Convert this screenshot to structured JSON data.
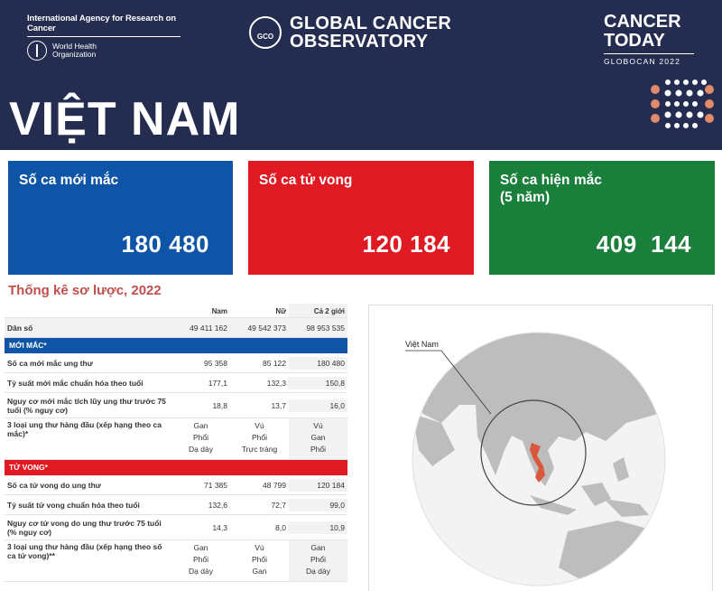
{
  "header": {
    "iarc": "International Agency for Research on Cancer",
    "who_line1": "World Health",
    "who_line2": "Organization",
    "gco_icon": "GCO",
    "gco_line1": "GLOBAL CANCER",
    "gco_line2": "OBSERVATORY",
    "ct_line1": "CANCER",
    "ct_line2": "TODAY",
    "ct_sub": "GLOBOCAN 2022"
  },
  "country": "VIỆT NAM",
  "stats": {
    "new_cases": {
      "label": "Số ca mới mắc",
      "value": "180 480"
    },
    "deaths": {
      "label": "Số ca tử vong",
      "value": "120 184"
    },
    "prevalence": {
      "label_line1": "Số ca hiện mắc",
      "label_line2": "(5 năm)",
      "value": "409  144"
    }
  },
  "section_title": "Thống kê sơ lược, 2022",
  "table": {
    "headers": [
      "",
      "Nam",
      "Nữ",
      "Cả 2 giới"
    ],
    "population": {
      "label": "Dân số",
      "male": "49 411 162",
      "female": "49 542 373",
      "both": "98 953 535"
    },
    "incidence_band": "MỚI MẮC*",
    "incidence": [
      {
        "label": "Số ca mới mắc ung thư",
        "male": "95 358",
        "female": "85 122",
        "both": "180 480"
      },
      {
        "label": "Tỷ suất mới mắc chuẩn hóa theo tuổi",
        "male": "177,1",
        "female": "132,3",
        "both": "150,8"
      },
      {
        "label": "Nguy cơ mới mắc tích lũy ung thư trước 75 tuổi (% nguy cơ)",
        "male": "18,8",
        "female": "13,7",
        "both": "16,0"
      }
    ],
    "incidence_top3": {
      "label": "3 loại ung thư hàng đầu (xếp hạng theo ca mắc)*",
      "male": [
        "Gan",
        "Phổi",
        "Dạ dày"
      ],
      "female": [
        "Vú",
        "Phổi",
        "Trực tràng"
      ],
      "both": [
        "Vú",
        "Gan",
        "Phổi"
      ]
    },
    "mortality_band": "TỬ VONG*",
    "mortality": [
      {
        "label": "Số ca tử vong do ung thư",
        "male": "71 385",
        "female": "48 799",
        "both": "120 184"
      },
      {
        "label": "Tỷ suất tử vong chuẩn hóa theo tuổi",
        "male": "132,6",
        "female": "72,7",
        "both": "99,0"
      },
      {
        "label": "Nguy cơ tử vong do ung thư trước 75 tuổi (% nguy cơ)",
        "male": "14,3",
        "female": "8,0",
        "both": "10,9"
      }
    ],
    "mortality_top3": {
      "label": "3 loại ung thư hàng đầu (xếp hạng theo số ca tử vong)**",
      "male": [
        "Gan",
        "Phổi",
        "Dạ dày"
      ],
      "female": [
        "Vú",
        "Phổi",
        "Gan"
      ],
      "both": [
        "Gan",
        "Phổi",
        "Dạ dày"
      ]
    }
  },
  "map": {
    "label": "Việt Nam"
  },
  "colors": {
    "header": "#242d4f",
    "blue": "#0e54a7",
    "red": "#e01a22",
    "green": "#1a7f3b",
    "accent": "#c0504d",
    "highlight": "#d9573a"
  }
}
